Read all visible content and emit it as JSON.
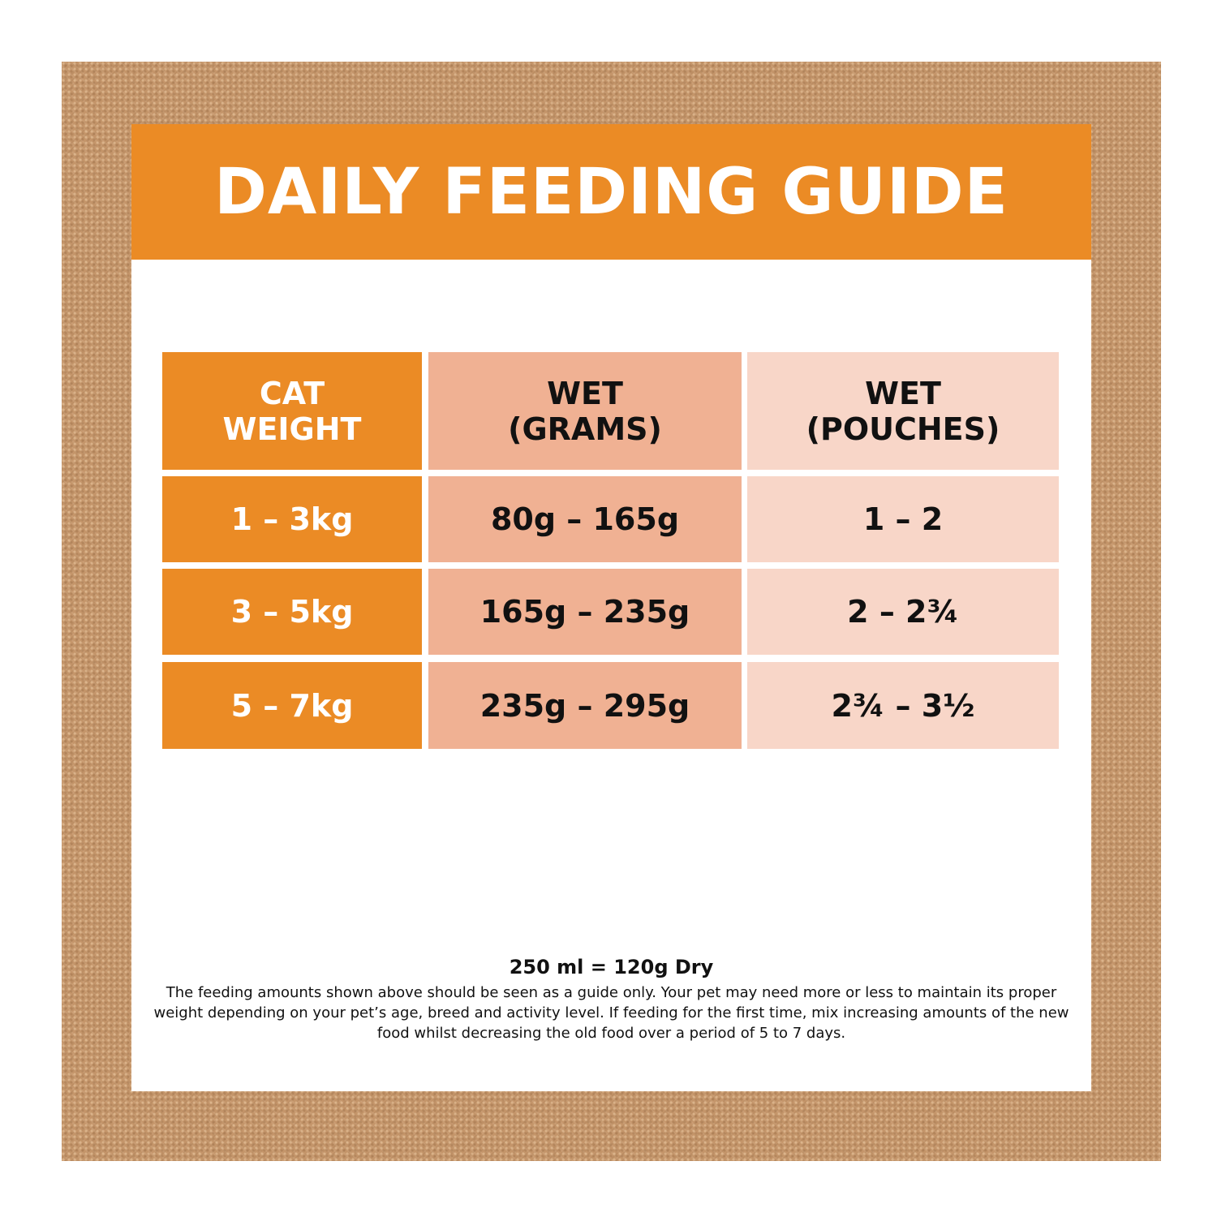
{
  "guide": {
    "title": "DAILY FEEDING GUIDE",
    "headers": [
      "CAT\nWEIGHT",
      "WET\n(GRAMS)",
      "WET\n(POUCHES)"
    ],
    "rows": [
      [
        "1 – 3kg",
        "80g – 165g",
        "1 – 2"
      ],
      [
        "3 – 5kg",
        "165g – 235g",
        "2 – 2¾"
      ],
      [
        "5 – 7kg",
        "235g – 295g",
        "2¾ – 3½"
      ]
    ],
    "measure": "250 ml = 120g Dry",
    "note": "The feeding amounts shown above should be seen as a guide only. Your pet may need more or less to maintain its proper weight depending on your pet’s age, breed and activity level. If feeding for the first time, mix increasing amounts of the new food whilst decreasing the old food over a period of 5 to 7 days."
  },
  "colors": {
    "frame": "#c4956a",
    "orange": "#eb8b25",
    "salmon": "#f0b193",
    "light_peach": "#f8d6c8"
  }
}
